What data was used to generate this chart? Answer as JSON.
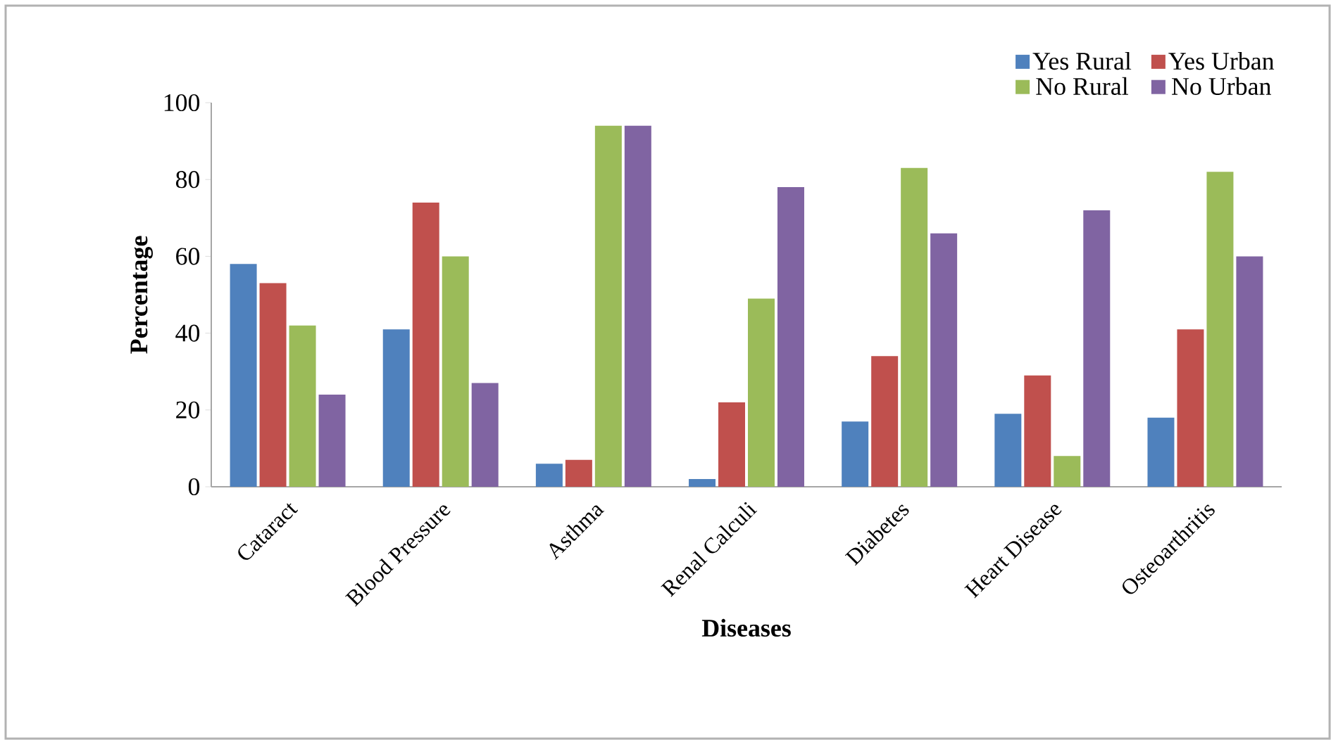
{
  "chart_data": {
    "type": "bar",
    "xlabel": "Diseases",
    "ylabel": "Percentage",
    "categories": [
      "Cataract",
      "Blood Pressure",
      "Asthma",
      "Renal Calculi",
      "Diabetes",
      "Heart Disease",
      "Osteoarthritis"
    ],
    "series": [
      {
        "name": "Yes Rural",
        "color": "#4f81bd",
        "values": [
          58,
          41,
          6,
          2,
          17,
          19,
          18
        ]
      },
      {
        "name": "Yes Urban",
        "color": "#c0504d",
        "values": [
          53,
          74,
          7,
          22,
          34,
          29,
          41
        ]
      },
      {
        "name": "No Rural",
        "color": "#9bbb59",
        "values": [
          42,
          60,
          94,
          49,
          83,
          8,
          82
        ]
      },
      {
        "name": "No Urban",
        "color": "#8064a2",
        "values": [
          24,
          27,
          94,
          78,
          66,
          72,
          60
        ]
      }
    ],
    "ylim": [
      0,
      100
    ],
    "yticks": [
      0,
      20,
      40,
      60,
      80,
      100
    ],
    "grid": false,
    "legend": "top right"
  }
}
